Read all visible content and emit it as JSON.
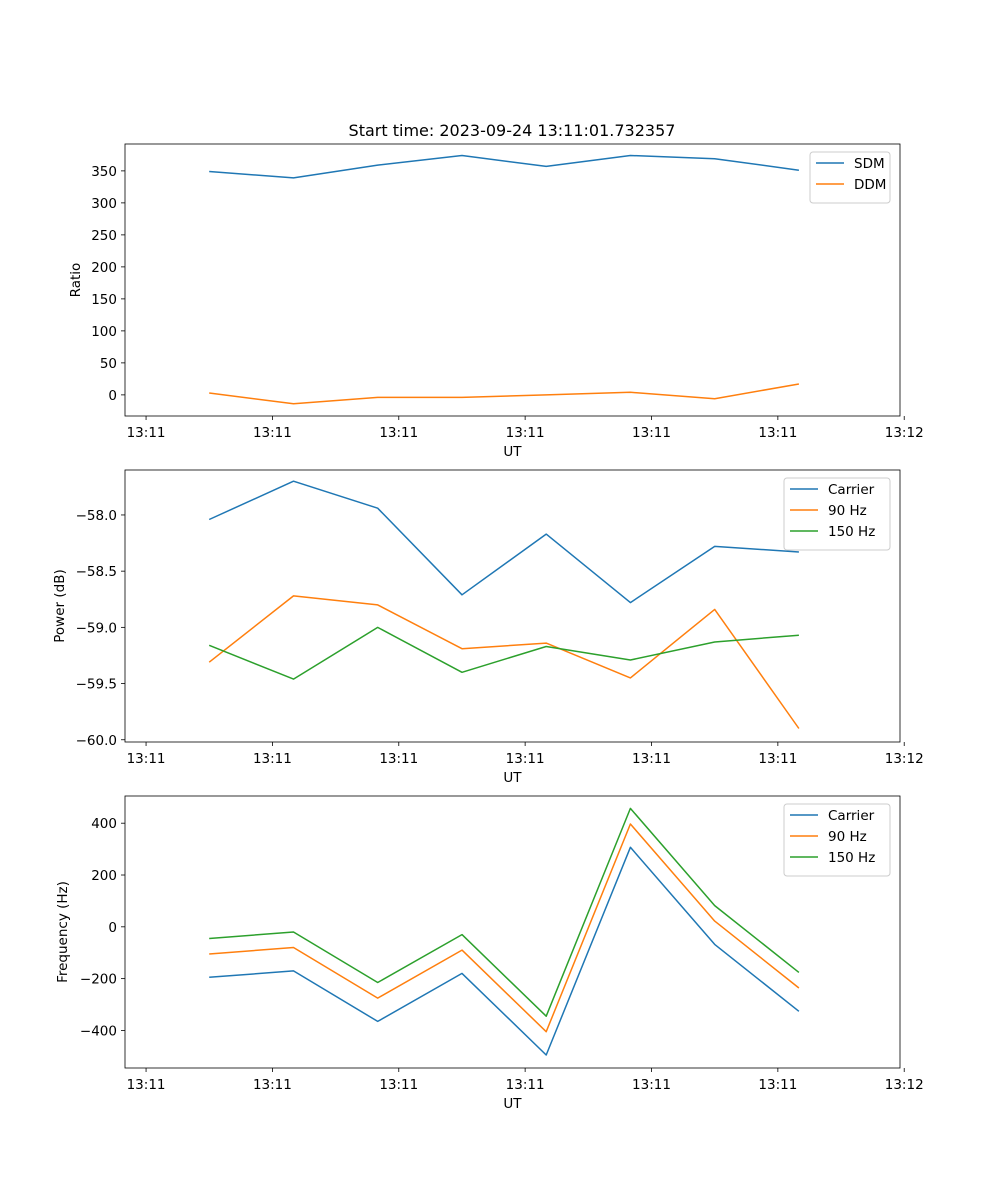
{
  "figure": {
    "title": "Start time: 2023-09-24 13:11:01.732357"
  },
  "chart_data": [
    {
      "type": "line",
      "title": "Start time: 2023-09-24 13:11:01.732357",
      "xlabel": "UT",
      "ylabel": "Ratio",
      "xlim": [
        -1.0,
        8.2
      ],
      "ylim": [
        -33,
        392
      ],
      "x": [
        0,
        1,
        2,
        3,
        4,
        5,
        6,
        7
      ],
      "xticks": [
        -0.75,
        0.75,
        2.25,
        3.75,
        5.25,
        6.75,
        8.25
      ],
      "xtick_labels": [
        "13:11",
        "13:11",
        "13:11",
        "13:11",
        "13:11",
        "13:11",
        "13:12"
      ],
      "yticks": [
        0,
        50,
        100,
        150,
        200,
        250,
        300,
        350
      ],
      "ytick_labels": [
        "0",
        "50",
        "100",
        "150",
        "200",
        "250",
        "300",
        "350"
      ],
      "grid": false,
      "legend_position": "top-right",
      "series": [
        {
          "name": "SDM",
          "color": "#1f77b4",
          "values": [
            349,
            339,
            359,
            374,
            357,
            374,
            369,
            351
          ]
        },
        {
          "name": "DDM",
          "color": "#ff7f0e",
          "values": [
            3,
            -14,
            -4,
            -4,
            0,
            4,
            -6,
            17
          ]
        }
      ]
    },
    {
      "type": "line",
      "xlabel": "UT",
      "ylabel": "Power (dB)",
      "xlim": [
        -1.0,
        8.2
      ],
      "ylim": [
        -60.02,
        -57.6
      ],
      "x": [
        0,
        1,
        2,
        3,
        4,
        5,
        6,
        7
      ],
      "xticks": [
        -0.75,
        0.75,
        2.25,
        3.75,
        5.25,
        6.75,
        8.25
      ],
      "xtick_labels": [
        "13:11",
        "13:11",
        "13:11",
        "13:11",
        "13:11",
        "13:11",
        "13:12"
      ],
      "yticks": [
        -60.0,
        -59.5,
        -59.0,
        -58.5,
        -58.0
      ],
      "ytick_labels": [
        "−60.0",
        "−59.5",
        "−59.0",
        "−58.5",
        "−58.0"
      ],
      "grid": false,
      "legend_position": "top-right",
      "series": [
        {
          "name": "Carrier",
          "color": "#1f77b4",
          "values": [
            -58.04,
            -57.7,
            -57.94,
            -58.71,
            -58.17,
            -58.78,
            -58.28,
            -58.33
          ]
        },
        {
          "name": "90 Hz",
          "color": "#ff7f0e",
          "values": [
            -59.31,
            -58.72,
            -58.8,
            -59.19,
            -59.14,
            -59.45,
            -58.84,
            -59.9
          ]
        },
        {
          "name": "150 Hz",
          "color": "#2ca02c",
          "values": [
            -59.16,
            -59.46,
            -59.0,
            -59.4,
            -59.17,
            -59.29,
            -59.13,
            -59.07
          ]
        }
      ]
    },
    {
      "type": "line",
      "xlabel": "UT",
      "ylabel": "Frequency (Hz)",
      "xlim": [
        -1.0,
        8.2
      ],
      "ylim": [
        -545,
        505
      ],
      "x": [
        0,
        1,
        2,
        3,
        4,
        5,
        6,
        7
      ],
      "xticks": [
        -0.75,
        0.75,
        2.25,
        3.75,
        5.25,
        6.75,
        8.25
      ],
      "xtick_labels": [
        "13:11",
        "13:11",
        "13:11",
        "13:11",
        "13:11",
        "13:11",
        "13:12"
      ],
      "yticks": [
        -400,
        -200,
        0,
        200,
        400
      ],
      "ytick_labels": [
        "−400",
        "−200",
        "0",
        "200",
        "400"
      ],
      "grid": false,
      "legend_position": "top-right",
      "series": [
        {
          "name": "Carrier",
          "color": "#1f77b4",
          "values": [
            -195,
            -170,
            -365,
            -180,
            -495,
            307,
            -68,
            -326
          ]
        },
        {
          "name": "90 Hz",
          "color": "#ff7f0e",
          "values": [
            -105,
            -80,
            -275,
            -90,
            -405,
            397,
            22,
            -236
          ]
        },
        {
          "name": "150 Hz",
          "color": "#2ca02c",
          "values": [
            -45,
            -20,
            -215,
            -30,
            -345,
            457,
            82,
            -176
          ]
        }
      ]
    }
  ]
}
